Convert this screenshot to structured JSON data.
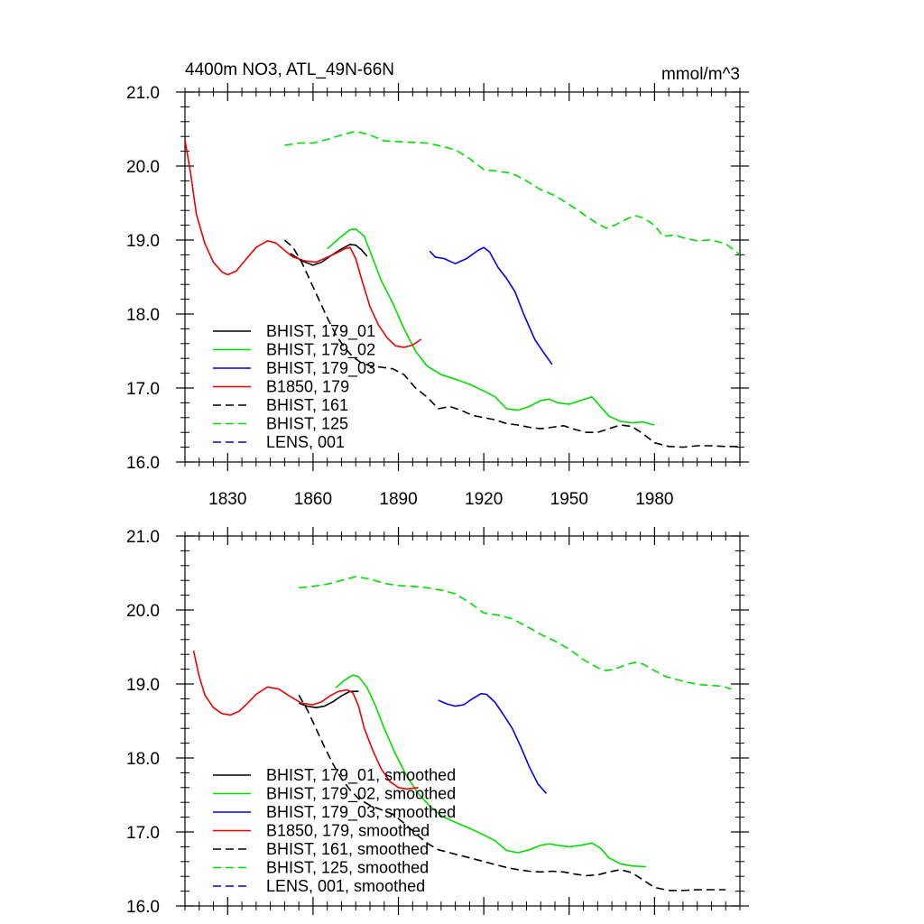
{
  "figure": {
    "title_left": "4400m NO3, ATL_49N-66N",
    "title_right": "mmol/m^3"
  },
  "chart_data": [
    {
      "type": "line",
      "panel": "top",
      "xlim": [
        1815,
        2010
      ],
      "ylim": [
        16.0,
        21.0
      ],
      "x_ticks": [
        1830,
        1860,
        1890,
        1920,
        1950,
        1980
      ],
      "x_tick_labels": [
        "1830",
        "1860",
        "1890",
        "1920",
        "1950",
        "1980"
      ],
      "y_ticks": [
        16.0,
        17.0,
        18.0,
        19.0,
        20.0,
        21.0
      ],
      "y_tick_labels": [
        "16.0",
        "17.0",
        "18.0",
        "19.0",
        "20.0",
        "21.0"
      ],
      "grid": false,
      "legend_position": "lower-left",
      "series": [
        {
          "name": "BHIST, 179_01",
          "color": "#000000",
          "dash": "solid",
          "x": [
            1852,
            1856,
            1860,
            1863,
            1866,
            1870,
            1873,
            1875,
            1877,
            1879
          ],
          "y": [
            18.82,
            18.72,
            18.66,
            18.7,
            18.78,
            18.88,
            18.94,
            18.93,
            18.87,
            18.78
          ]
        },
        {
          "name": "BHIST, 179_02",
          "color": "#00dd00",
          "dash": "solid",
          "x": [
            1865,
            1870,
            1873,
            1875,
            1878,
            1881,
            1884,
            1888,
            1892,
            1896,
            1900,
            1905,
            1910,
            1915,
            1920,
            1924,
            1928,
            1932,
            1936,
            1940,
            1943,
            1946,
            1950,
            1954,
            1958,
            1961,
            1964,
            1968,
            1972,
            1976,
            1980
          ],
          "y": [
            18.88,
            19.05,
            19.14,
            19.15,
            19.05,
            18.75,
            18.45,
            18.15,
            17.8,
            17.5,
            17.3,
            17.18,
            17.12,
            17.05,
            16.96,
            16.88,
            16.72,
            16.7,
            16.75,
            16.83,
            16.85,
            16.8,
            16.78,
            16.83,
            16.88,
            16.75,
            16.62,
            16.55,
            16.53,
            16.54,
            16.5
          ]
        },
        {
          "name": "BHIST, 179_03",
          "color": "#0000ee",
          "dash": "solid",
          "x": [
            1901,
            1903,
            1906,
            1910,
            1914,
            1918,
            1920,
            1922,
            1925,
            1928,
            1931,
            1934,
            1938,
            1941,
            1944
          ],
          "y": [
            18.85,
            18.77,
            18.75,
            18.68,
            18.75,
            18.86,
            18.9,
            18.84,
            18.63,
            18.48,
            18.3,
            18.0,
            17.65,
            17.48,
            17.32
          ]
        },
        {
          "name": "B1850, 179",
          "color": "#ee0000",
          "dash": "solid",
          "x": [
            1815,
            1817,
            1819,
            1822,
            1825,
            1828,
            1830,
            1833,
            1836,
            1840,
            1844,
            1847,
            1850,
            1853,
            1857,
            1861,
            1864,
            1868,
            1871,
            1873,
            1875,
            1877,
            1880,
            1883,
            1886,
            1889,
            1892,
            1895,
            1898
          ],
          "y": [
            20.35,
            19.9,
            19.35,
            18.95,
            18.7,
            18.57,
            18.53,
            18.58,
            18.72,
            18.9,
            18.99,
            18.96,
            18.86,
            18.77,
            18.72,
            18.7,
            18.75,
            18.82,
            18.88,
            18.9,
            18.75,
            18.48,
            18.1,
            17.85,
            17.68,
            17.57,
            17.55,
            17.58,
            17.66
          ]
        },
        {
          "name": "BHIST, 161",
          "color": "#000000",
          "dash": "dashed",
          "x": [
            1850,
            1853,
            1856,
            1859,
            1862,
            1865,
            1868,
            1871,
            1874,
            1877,
            1880,
            1884,
            1888,
            1892,
            1896,
            1900,
            1904,
            1908,
            1912,
            1916,
            1920,
            1924,
            1928,
            1932,
            1936,
            1940,
            1944,
            1948,
            1952,
            1956,
            1960,
            1964,
            1968,
            1972,
            1976,
            1980,
            1985,
            1990,
            1995,
            2000,
            2005,
            2010
          ],
          "y": [
            19.0,
            18.9,
            18.7,
            18.45,
            18.2,
            17.95,
            17.72,
            17.55,
            17.42,
            17.34,
            17.3,
            17.28,
            17.26,
            17.18,
            17.0,
            16.88,
            16.72,
            16.75,
            16.7,
            16.63,
            16.6,
            16.57,
            16.52,
            16.5,
            16.47,
            16.45,
            16.47,
            16.49,
            16.44,
            16.4,
            16.4,
            16.45,
            16.5,
            16.48,
            16.38,
            16.26,
            16.21,
            16.2,
            16.22,
            16.22,
            16.21,
            16.21
          ]
        },
        {
          "name": "BHIST, 125",
          "color": "#00dd00",
          "dash": "dashed",
          "x": [
            1850,
            1855,
            1860,
            1865,
            1870,
            1875,
            1880,
            1885,
            1890,
            1895,
            1900,
            1905,
            1910,
            1915,
            1920,
            1925,
            1930,
            1935,
            1940,
            1945,
            1950,
            1955,
            1960,
            1963,
            1966,
            1970,
            1973,
            1976,
            1980,
            1983,
            1987,
            1991,
            1995,
            2000,
            2005,
            2010
          ],
          "y": [
            20.28,
            20.31,
            20.31,
            20.36,
            20.42,
            20.47,
            20.42,
            20.34,
            20.33,
            20.32,
            20.31,
            20.27,
            20.22,
            20.1,
            19.95,
            19.93,
            19.9,
            19.8,
            19.68,
            19.6,
            19.48,
            19.35,
            19.22,
            19.16,
            19.2,
            19.28,
            19.33,
            19.3,
            19.2,
            19.05,
            19.07,
            19.02,
            18.99,
            19.0,
            18.95,
            18.8
          ]
        },
        {
          "name": "LENS, 001",
          "color": "#0000ee",
          "dash": "dashed",
          "x": [],
          "y": []
        }
      ]
    },
    {
      "type": "line",
      "panel": "bottom",
      "xlim": [
        1815,
        2010
      ],
      "ylim": [
        16.0,
        21.0
      ],
      "x_ticks": [
        1830,
        1860,
        1890,
        1920,
        1950,
        1980
      ],
      "x_tick_labels": [],
      "y_ticks": [
        16.0,
        17.0,
        18.0,
        19.0,
        20.0,
        21.0
      ],
      "y_tick_labels": [
        "16.0",
        "17.0",
        "18.0",
        "19.0",
        "20.0",
        "21.0"
      ],
      "grid": false,
      "legend_position": "lower-left",
      "series": [
        {
          "name": "BHIST, 179_01, smoothed",
          "color": "#000000",
          "dash": "solid",
          "x": [
            1855,
            1858,
            1861,
            1864,
            1867,
            1870,
            1873,
            1876
          ],
          "y": [
            18.74,
            18.7,
            18.68,
            18.7,
            18.76,
            18.84,
            18.9,
            18.9
          ]
        },
        {
          "name": "BHIST, 179_02, smoothed",
          "color": "#00dd00",
          "dash": "solid",
          "x": [
            1868,
            1871,
            1874,
            1876,
            1879,
            1882,
            1885,
            1889,
            1893,
            1897,
            1901,
            1905,
            1910,
            1915,
            1920,
            1924,
            1928,
            1932,
            1936,
            1940,
            1943,
            1946,
            1950,
            1954,
            1958,
            1961,
            1964,
            1968,
            1972,
            1977
          ],
          "y": [
            18.95,
            19.05,
            19.12,
            19.1,
            18.95,
            18.7,
            18.4,
            18.05,
            17.75,
            17.52,
            17.35,
            17.22,
            17.13,
            17.05,
            16.96,
            16.88,
            16.75,
            16.72,
            16.76,
            16.82,
            16.84,
            16.82,
            16.8,
            16.82,
            16.85,
            16.78,
            16.65,
            16.57,
            16.54,
            16.53
          ]
        },
        {
          "name": "BHIST, 179_03, smoothed",
          "color": "#0000ee",
          "dash": "solid",
          "x": [
            1904,
            1907,
            1910,
            1913,
            1916,
            1919,
            1921,
            1924,
            1927,
            1930,
            1933,
            1936,
            1939,
            1942
          ],
          "y": [
            18.78,
            18.73,
            18.7,
            18.72,
            18.8,
            18.87,
            18.86,
            18.75,
            18.58,
            18.4,
            18.15,
            17.88,
            17.65,
            17.52
          ]
        },
        {
          "name": "B1850, 179, smoothed",
          "color": "#ee0000",
          "dash": "solid",
          "x": [
            1818,
            1820,
            1822,
            1825,
            1828,
            1831,
            1834,
            1837,
            1840,
            1844,
            1848,
            1852,
            1856,
            1860,
            1863,
            1866,
            1869,
            1872,
            1874,
            1876,
            1878,
            1881,
            1884,
            1887,
            1890,
            1893,
            1897
          ],
          "y": [
            19.45,
            19.1,
            18.85,
            18.68,
            18.6,
            18.58,
            18.63,
            18.74,
            18.86,
            18.96,
            18.93,
            18.83,
            18.74,
            18.72,
            18.76,
            18.84,
            18.9,
            18.92,
            18.88,
            18.7,
            18.4,
            18.1,
            17.85,
            17.68,
            17.6,
            17.58,
            17.6
          ]
        },
        {
          "name": "BHIST, 161, smoothed",
          "color": "#000000",
          "dash": "dashed",
          "x": [
            1855,
            1858,
            1861,
            1864,
            1867,
            1870,
            1873,
            1876,
            1880,
            1884,
            1888,
            1892,
            1896,
            1900,
            1904,
            1908,
            1912,
            1916,
            1920,
            1924,
            1928,
            1932,
            1936,
            1940,
            1944,
            1948,
            1952,
            1956,
            1960,
            1964,
            1968,
            1972,
            1976,
            1980,
            1985,
            1990,
            1995,
            2000,
            2005
          ],
          "y": [
            18.85,
            18.65,
            18.4,
            18.15,
            17.92,
            17.72,
            17.57,
            17.45,
            17.36,
            17.3,
            17.24,
            17.12,
            16.98,
            16.85,
            16.76,
            16.72,
            16.68,
            16.64,
            16.6,
            16.56,
            16.52,
            16.49,
            16.47,
            16.46,
            16.47,
            16.46,
            16.43,
            16.41,
            16.42,
            16.46,
            16.49,
            16.45,
            16.35,
            16.25,
            16.21,
            16.21,
            16.22,
            16.22,
            16.22
          ]
        },
        {
          "name": "BHIST, 125, smoothed",
          "color": "#00dd00",
          "dash": "dashed",
          "x": [
            1855,
            1860,
            1865,
            1870,
            1875,
            1880,
            1885,
            1890,
            1895,
            1900,
            1905,
            1910,
            1915,
            1920,
            1925,
            1930,
            1935,
            1940,
            1945,
            1950,
            1955,
            1960,
            1963,
            1966,
            1970,
            1973,
            1976,
            1980,
            1984,
            1988,
            1992,
            1996,
            2000,
            2004,
            2007
          ],
          "y": [
            20.3,
            20.32,
            20.35,
            20.4,
            20.45,
            20.42,
            20.36,
            20.33,
            20.32,
            20.3,
            20.27,
            20.22,
            20.1,
            19.96,
            19.93,
            19.88,
            19.78,
            19.67,
            19.58,
            19.47,
            19.33,
            19.22,
            19.18,
            19.2,
            19.26,
            19.29,
            19.27,
            19.18,
            19.1,
            19.06,
            19.02,
            18.99,
            18.98,
            18.97,
            18.93
          ]
        },
        {
          "name": "LENS, 001, smoothed",
          "color": "#0000ee",
          "dash": "dashed",
          "x": [],
          "y": []
        }
      ]
    }
  ]
}
